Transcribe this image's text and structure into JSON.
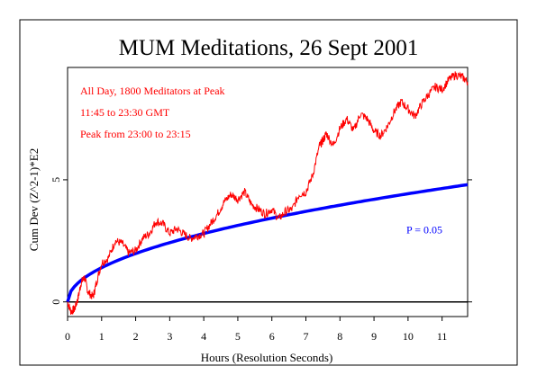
{
  "chart_data": {
    "type": "line",
    "title": "MUM Meditations, 26 Sept 2001",
    "xlabel": "Hours (Resolution Seconds)",
    "ylabel": "Cum Dev (Z^2-1)*E2",
    "xlim": [
      0,
      11.75
    ],
    "ylim": [
      -0.6,
      9.6
    ],
    "x_ticks": [
      0,
      1,
      2,
      3,
      4,
      5,
      6,
      7,
      8,
      9,
      10,
      11
    ],
    "y_ticks": [
      0,
      5
    ],
    "grid": false,
    "annotations": [
      "All Day, 1800 Meditators at Peak",
      "11:45 to 23:30 GMT",
      "Peak from 23:00 to 23:15"
    ],
    "series": [
      {
        "name": "",
        "color": "#ff0000",
        "x": [
          0,
          0.1,
          0.2,
          0.3,
          0.4,
          0.5,
          0.6,
          0.75,
          0.85,
          1.0,
          1.2,
          1.4,
          1.6,
          1.8,
          2.0,
          2.2,
          2.4,
          2.6,
          2.8,
          3.0,
          3.2,
          3.4,
          3.6,
          3.8,
          4.0,
          4.2,
          4.4,
          4.6,
          4.8,
          5.0,
          5.2,
          5.4,
          5.6,
          5.8,
          6.0,
          6.2,
          6.4,
          6.6,
          6.8,
          7.0,
          7.2,
          7.4,
          7.5,
          7.6,
          7.8,
          8.0,
          8.2,
          8.4,
          8.6,
          8.8,
          9.0,
          9.2,
          9.4,
          9.6,
          9.8,
          10.0,
          10.2,
          10.4,
          10.6,
          10.8,
          11.0,
          11.2,
          11.4,
          11.6,
          11.75
        ],
        "values": [
          0,
          -0.4,
          -0.3,
          0.1,
          0.8,
          1.0,
          0.4,
          0.2,
          0.8,
          1.6,
          1.8,
          2.5,
          2.4,
          2.0,
          2.1,
          2.6,
          2.8,
          3.3,
          3.2,
          2.8,
          3.0,
          2.8,
          2.6,
          2.7,
          2.8,
          3.2,
          3.6,
          4.1,
          4.4,
          4.2,
          4.5,
          4.0,
          3.8,
          3.6,
          3.8,
          3.4,
          3.7,
          3.8,
          4.4,
          4.5,
          5.2,
          6.4,
          6.6,
          6.9,
          6.4,
          7.1,
          7.5,
          7.0,
          7.7,
          7.5,
          7.0,
          6.8,
          7.2,
          7.8,
          8.2,
          7.9,
          7.6,
          8.1,
          8.5,
          8.8,
          8.7,
          9.1,
          9.3,
          9.2,
          9.0
        ]
      }
    ],
    "reference_curve": {
      "label": "P = 0.05",
      "color": "#0000ff",
      "formula": "y = 1.645 * sqrt(2 * N) * 0.01 approx; scaled so y(11.75)=4.8",
      "y_at_end": 4.8
    }
  }
}
